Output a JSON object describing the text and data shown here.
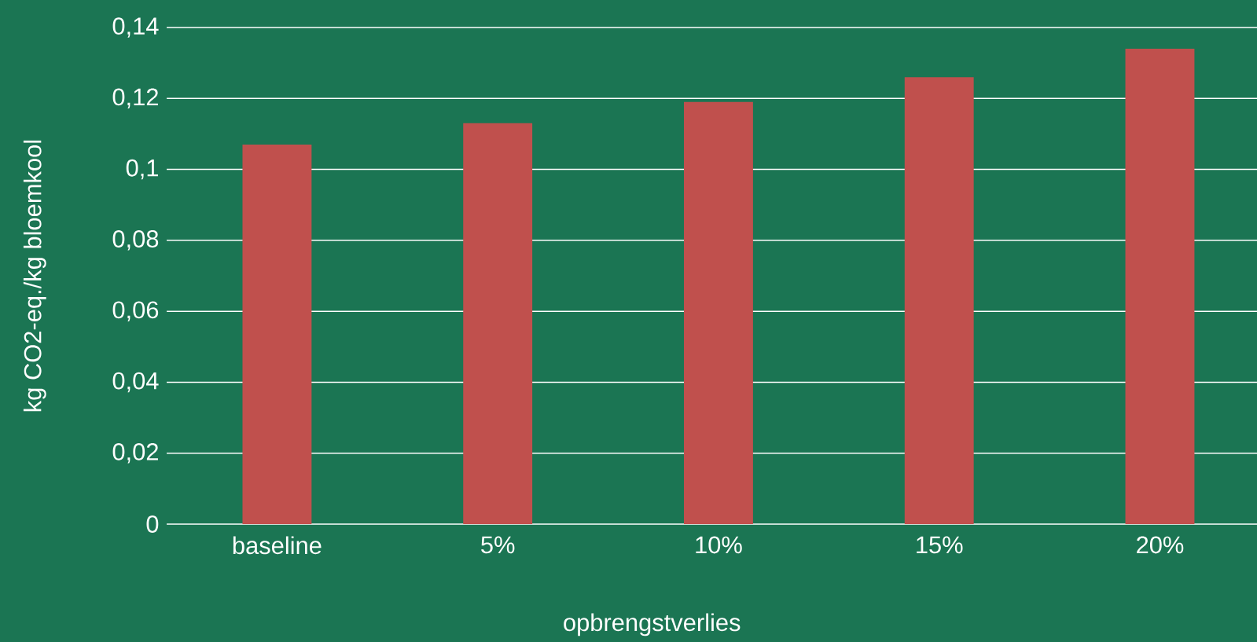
{
  "chart_data": {
    "type": "bar",
    "xlabel": "opbrengstverlies",
    "ylabel": "kg CO2-eq./kg bloemkool",
    "categories": [
      "baseline",
      "5%",
      "10%",
      "15%",
      "20%"
    ],
    "values": [
      0.107,
      0.113,
      0.119,
      0.126,
      0.134
    ],
    "color": "#c0504d",
    "ylim": [
      0,
      0.14
    ],
    "yticks": [
      0,
      {
        "value": 0.02,
        "label": "0,02"
      },
      {
        "value": 0.04,
        "label": "0,04"
      },
      {
        "value": 0.06,
        "label": "0,06"
      },
      {
        "value": 0.08,
        "label": "0,08"
      },
      {
        "value": 0.1,
        "label": "0,1"
      },
      {
        "value": 0.12,
        "label": "0,12"
      },
      {
        "value": 0.14,
        "label": "0,14"
      }
    ],
    "grid": "y"
  }
}
